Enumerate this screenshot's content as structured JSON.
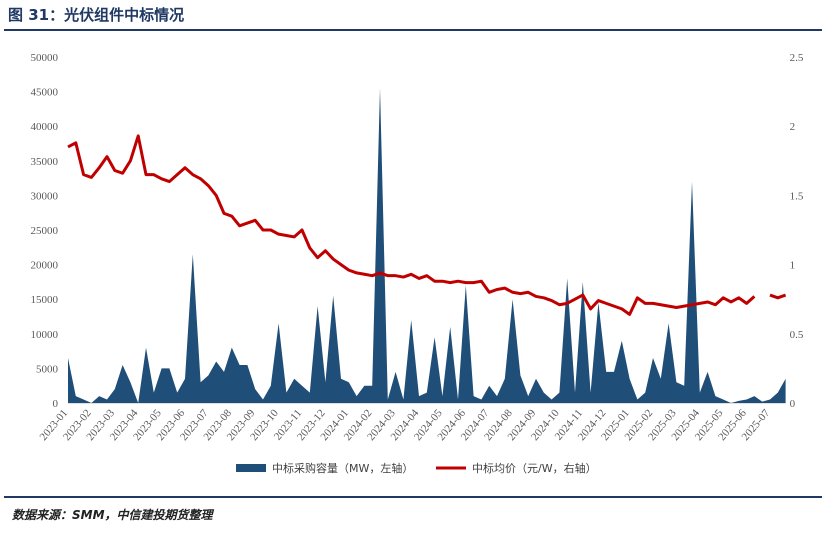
{
  "title": "图 31：光伏组件中标情况",
  "source": "数据来源：SMM，中信建投期货整理",
  "chart_data": {
    "type": "combo",
    "categories": [
      "2023-01",
      null,
      null,
      "2023-02",
      null,
      null,
      "2023-03",
      null,
      null,
      "2023-04",
      null,
      null,
      "2023-05",
      null,
      null,
      "2023-06",
      null,
      null,
      "2023-07",
      null,
      null,
      "2023-08",
      null,
      null,
      "2023-09",
      null,
      null,
      "2023-10",
      null,
      null,
      "2023-11",
      null,
      null,
      "2023-12",
      null,
      null,
      "2024-01",
      null,
      null,
      "2024-02",
      null,
      null,
      "2024-03",
      null,
      null,
      "2024-04",
      null,
      null,
      "2024-05",
      null,
      null,
      "2024-06",
      null,
      null,
      "2024-07",
      null,
      null,
      "2024-08",
      null,
      null,
      "2024-09",
      null,
      null,
      "2024-10",
      null,
      null,
      "2024-11",
      null,
      null,
      "2024-12",
      null,
      null,
      "2025-01",
      null,
      null,
      "2025-02",
      null,
      null,
      "2025-03",
      null,
      null,
      "2025-04",
      null,
      null,
      "2025-05",
      null,
      null,
      "2025-06",
      null,
      null,
      "2025-07",
      null,
      null
    ],
    "series": [
      {
        "name": "中标采购容量（MW，左轴）",
        "type": "area",
        "color": "#1f4e79",
        "values": [
          6500,
          1000,
          500,
          0,
          1000,
          500,
          2000,
          5500,
          3000,
          0,
          8000,
          1500,
          5000,
          5000,
          1500,
          3500,
          21500,
          3000,
          4000,
          6000,
          4500,
          8000,
          5500,
          5500,
          2000,
          500,
          2500,
          11500,
          1500,
          3500,
          2500,
          1500,
          14000,
          3000,
          15500,
          3500,
          3000,
          1000,
          2500,
          2500,
          45500,
          500,
          4500,
          500,
          12000,
          1000,
          1500,
          9500,
          1000,
          11000,
          500,
          17000,
          1000,
          500,
          2500,
          1000,
          3500,
          15000,
          4000,
          1000,
          3500,
          1500,
          500,
          1500,
          18000,
          1500,
          17500,
          1500,
          14500,
          4500,
          4500,
          9000,
          3500,
          500,
          1500,
          6500,
          3500,
          11500,
          3000,
          2500,
          32000,
          1500,
          4500,
          1000,
          500,
          0,
          300,
          500,
          1000,
          200,
          500,
          1500,
          3500
        ]
      },
      {
        "name": "中标均价（元/W，右轴）",
        "type": "line",
        "axis": "y2",
        "color": "#c00000",
        "values": [
          1.85,
          1.88,
          1.65,
          1.63,
          1.7,
          1.78,
          1.68,
          1.66,
          1.75,
          1.93,
          1.65,
          1.65,
          1.62,
          1.6,
          1.65,
          1.7,
          1.65,
          1.62,
          1.57,
          1.5,
          1.37,
          1.35,
          1.28,
          1.3,
          1.32,
          1.25,
          1.25,
          1.22,
          1.21,
          1.2,
          1.25,
          1.12,
          1.05,
          1.1,
          1.04,
          1.0,
          0.96,
          0.94,
          0.93,
          0.92,
          0.94,
          0.92,
          0.92,
          0.91,
          0.93,
          0.9,
          0.92,
          0.88,
          0.88,
          0.87,
          0.88,
          0.87,
          0.87,
          0.88,
          0.8,
          0.82,
          0.83,
          0.8,
          0.79,
          0.8,
          0.77,
          0.76,
          0.74,
          0.71,
          0.72,
          0.75,
          0.78,
          0.68,
          0.74,
          0.72,
          0.7,
          0.68,
          0.64,
          0.76,
          0.72,
          0.72,
          0.71,
          0.7,
          0.69,
          0.7,
          0.71,
          0.72,
          0.73,
          0.71,
          0.76,
          0.73,
          0.76,
          0.72,
          0.77,
          null,
          0.78,
          0.76,
          0.78
        ]
      }
    ],
    "ylim": [
      0,
      50000
    ],
    "yticks": [
      0,
      5000,
      10000,
      15000,
      20000,
      25000,
      30000,
      35000,
      40000,
      45000,
      50000
    ],
    "y2lim": [
      0,
      2.5
    ],
    "y2ticks": [
      0,
      0.5,
      1,
      1.5,
      2,
      2.5
    ],
    "legend": "bottom"
  }
}
